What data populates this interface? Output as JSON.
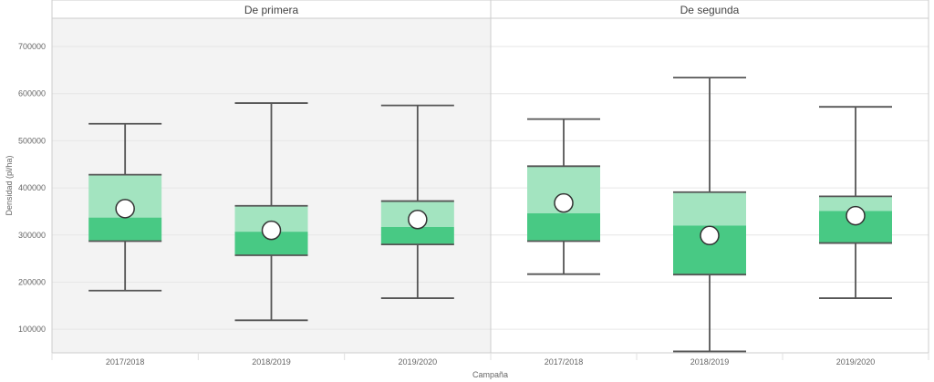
{
  "chart_data": {
    "type": "box",
    "xlabel": "Campaña",
    "ylabel": "Densidad (pl/ha)",
    "ylim": [
      50000,
      760000
    ],
    "yticks": [
      100000,
      200000,
      300000,
      400000,
      500000,
      600000,
      700000
    ],
    "ytick_labels": [
      "100000",
      "200000",
      "300000",
      "400000",
      "500000",
      "600000",
      "700000"
    ],
    "grid": true,
    "colors": {
      "box_upper": "#a3e4c0",
      "box_lower": "#48c984",
      "whisker": "#555555",
      "mean_marker": "#ffffff",
      "panel_shaded_bg": "#f3f3f3",
      "gridline": "#e6e6e6"
    },
    "panels": [
      {
        "title": "De primera",
        "shaded": true,
        "boxes": [
          {
            "category": "2017/2018",
            "min": 182000,
            "q1": 287000,
            "median": 337000,
            "q3": 428000,
            "max": 536000,
            "mean": 356000
          },
          {
            "category": "2018/2019",
            "min": 119000,
            "q1": 257000,
            "median": 307000,
            "q3": 362000,
            "max": 580000,
            "mean": 310000
          },
          {
            "category": "2019/2020",
            "min": 166000,
            "q1": 280000,
            "median": 317000,
            "q3": 372000,
            "max": 575000,
            "mean": 333000
          }
        ]
      },
      {
        "title": "De segunda",
        "shaded": false,
        "boxes": [
          {
            "category": "2017/2018",
            "min": 217000,
            "q1": 287000,
            "median": 346000,
            "q3": 446000,
            "max": 546000,
            "mean": 368000
          },
          {
            "category": "2018/2019",
            "min": 53000,
            "q1": 216000,
            "median": 320000,
            "q3": 391000,
            "max": 634000,
            "mean": 299000
          },
          {
            "category": "2019/2020",
            "min": 166000,
            "q1": 283000,
            "median": 351000,
            "q3": 382000,
            "max": 572000,
            "mean": 341000
          }
        ]
      }
    ]
  }
}
